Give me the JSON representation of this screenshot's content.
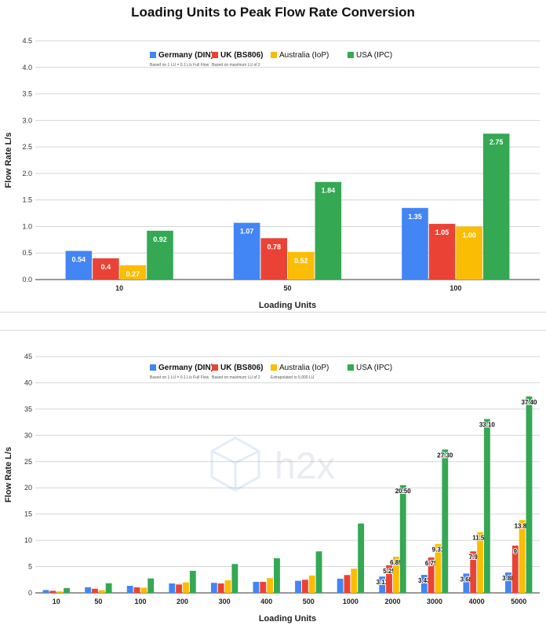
{
  "chart_data": [
    {
      "type": "bar",
      "title": "Loading Units to Peak Flow Rate Conversion",
      "xlabel": "Loading Units",
      "ylabel": "Flow Rate L/s",
      "ylim": [
        0,
        4.5
      ],
      "yticks": [
        "0.0",
        "0.5",
        "1.0",
        "1.5",
        "2.0",
        "2.5",
        "3.0",
        "3.5",
        "4.0",
        "4.5"
      ],
      "grid": true,
      "legend_position": "top-center",
      "categories": [
        "10",
        "50",
        "100"
      ],
      "series": [
        {
          "name": "Germany (DIN)",
          "note": "Based on 1 LU = 0.1 L/s Full Flow",
          "color": "#4285f4",
          "values": [
            0.54,
            1.07,
            1.35
          ],
          "labels": [
            "0.54",
            "1.07",
            "1.35"
          ]
        },
        {
          "name": "UK (BS806)",
          "note": "Based on maximum LU of 2",
          "color": "#ea4335",
          "values": [
            0.4,
            0.78,
            1.05
          ],
          "labels": [
            "0.4",
            "0.78",
            "1.05"
          ]
        },
        {
          "name": "Australia (IoP)",
          "note": "",
          "color": "#fbbc04",
          "values": [
            0.27,
            0.52,
            1.0
          ],
          "labels": [
            "0.27",
            "0.52",
            "1.00"
          ]
        },
        {
          "name": "USA (IPC)",
          "note": "",
          "color": "#34a853",
          "values": [
            0.92,
            1.84,
            2.75
          ],
          "labels": [
            "0.92",
            "1.84",
            "2.75"
          ]
        }
      ]
    },
    {
      "type": "bar",
      "title": "",
      "xlabel": "Loading Units",
      "ylabel": "Flow Rate L/s",
      "ylim": [
        0,
        45
      ],
      "yticks": [
        "0",
        "5",
        "10",
        "15",
        "20",
        "25",
        "30",
        "35",
        "40",
        "45"
      ],
      "grid": true,
      "legend_position": "top-center",
      "watermark": "h2x",
      "categories": [
        "10",
        "50",
        "100",
        "200",
        "300",
        "400",
        "500",
        "1000",
        "2000",
        "3000",
        "4000",
        "5000"
      ],
      "series": [
        {
          "name": "Germany (DIN)",
          "note": "Based on 1 LU = 0.1 L/s Full Flow",
          "color": "#4285f4",
          "values": [
            0.54,
            1.07,
            1.35,
            1.8,
            1.9,
            2.1,
            2.3,
            2.7,
            3.11,
            3.43,
            3.68,
            3.88
          ],
          "labels": [
            "",
            "",
            "",
            "",
            "",
            "",
            "",
            "",
            "3.11",
            "3.43",
            "3.68",
            "3.88"
          ]
        },
        {
          "name": "UK (BS806)",
          "note": "Based on maximum LU of 2",
          "color": "#ea4335",
          "values": [
            0.4,
            0.78,
            1.05,
            1.6,
            1.8,
            2.1,
            2.5,
            3.4,
            5.25,
            6.75,
            7.9,
            9.0
          ],
          "labels": [
            "",
            "",
            "",
            "",
            "",
            "",
            "",
            "",
            "5.25",
            "6.75",
            "7.9",
            "9"
          ]
        },
        {
          "name": "Australia (IoP)",
          "note": "Extrapolated to 5,000 LU",
          "color": "#fbbc04",
          "values": [
            0.27,
            0.52,
            1.0,
            2.0,
            2.4,
            2.8,
            3.3,
            4.6,
            6.89,
            9.31,
            11.56,
            13.86
          ],
          "labels": [
            "",
            "",
            "",
            "",
            "",
            "",
            "",
            "",
            "6.89",
            "9.31",
            "11.56",
            "13.86"
          ]
        },
        {
          "name": "USA (IPC)",
          "note": "",
          "color": "#34a853",
          "values": [
            0.92,
            1.84,
            2.75,
            4.2,
            5.5,
            6.6,
            7.9,
            13.2,
            20.5,
            27.3,
            33.1,
            37.4
          ],
          "labels": [
            "",
            "",
            "",
            "",
            "",
            "",
            "",
            "",
            "20.50",
            "27.30",
            "33.10",
            "37.40"
          ]
        }
      ]
    }
  ]
}
